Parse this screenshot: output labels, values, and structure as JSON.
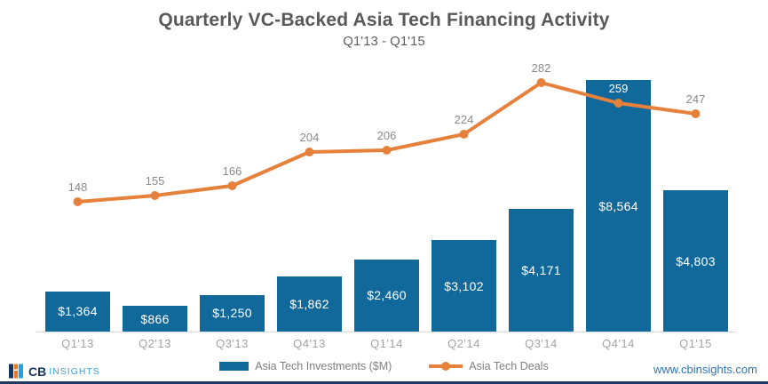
{
  "title": "Quarterly VC-Backed Asia Tech Financing Activity",
  "subtitle": "Q1'13 - Q1'15",
  "chart_data": {
    "type": "combo",
    "categories": [
      "Q1'13",
      "Q2'13",
      "Q3'13",
      "Q4'13",
      "Q1'14",
      "Q2'14",
      "Q3'14",
      "Q4'14",
      "Q1'15"
    ],
    "series": [
      {
        "name": "Asia Tech Investments ($M)",
        "type": "bar",
        "color": "#10699a",
        "values": [
          1364,
          866,
          1250,
          1862,
          2460,
          3102,
          4171,
          8564,
          4803
        ],
        "value_labels": [
          "$1,364",
          "$866",
          "$1,250",
          "$1,862",
          "$2,460",
          "$3,102",
          "$4,171",
          "$8,564",
          "$4,803"
        ]
      },
      {
        "name": "Asia Tech Deals",
        "type": "line",
        "color": "#e6813c",
        "values": [
          148,
          155,
          166,
          204,
          206,
          224,
          282,
          259,
          247
        ]
      }
    ],
    "title": "Quarterly VC-Backed Asia Tech Financing Activity",
    "subtitle": "Q1'13 - Q1'15",
    "xlabel": "",
    "ylabel": "",
    "grid": false,
    "data_labels": true,
    "legend_position": "bottom"
  },
  "colors": {
    "bar": "#10699a",
    "line": "#e6813c",
    "title_text": "#595959",
    "axis_label": "#a3a3a3",
    "line_label": "#8a8a8a",
    "navy_border": "#1f3864",
    "url_blue": "#2e74b5",
    "logo_navy": "#16365d",
    "logo_light_blue": "#3fa0d9",
    "logo_orange": "#e87728",
    "logo_teal": "#2a9fd8"
  },
  "footer": {
    "logo_cb": "CB",
    "logo_insights": "INSIGHTS",
    "website": "www.cbinsights.com"
  }
}
